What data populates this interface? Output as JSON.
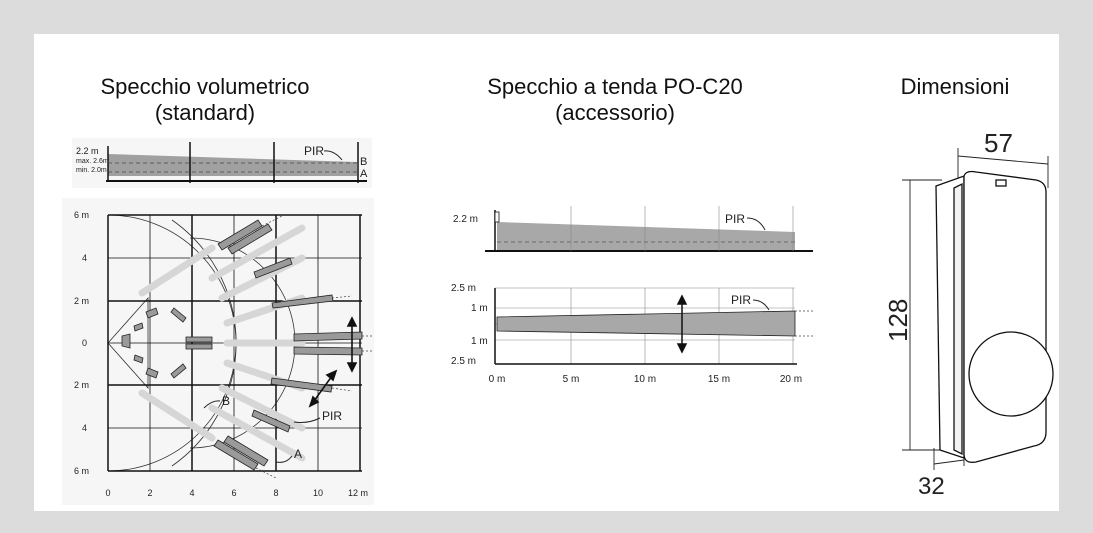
{
  "panels": {
    "volumetric": {
      "title_line1": "Specchio volumetrico",
      "title_line2": "(standard)",
      "side": {
        "height_label": "2.2 m",
        "max_label": "max. 2.6m",
        "min_label": "min. 2.0m",
        "pir_label": "PIR",
        "b_label": "B",
        "a_label": "A"
      },
      "top": {
        "y_labels": [
          "6 m",
          "4",
          "2 m",
          "0",
          "2 m",
          "4",
          "6 m"
        ],
        "x_labels": [
          "0",
          "2",
          "4",
          "6",
          "8",
          "10",
          "12 m"
        ],
        "pir_label": "PIR",
        "a_label": "A",
        "b_label": "B"
      }
    },
    "curtain": {
      "title_line1": "Specchio a tenda PO-C20",
      "title_line2": "(accessorio)",
      "side": {
        "height_label": "2.2 m",
        "pir_label": "PIR"
      },
      "top": {
        "y_labels": [
          "2.5 m",
          "1 m",
          "1 m",
          "2.5 m"
        ],
        "x_labels": [
          "0 m",
          "5 m",
          "10 m",
          "15 m",
          "20 m"
        ],
        "pir_label": "PIR"
      }
    },
    "dimensions": {
      "title": "Dimensioni",
      "width_label": "57",
      "height_label": "128",
      "depth_label": "32"
    }
  },
  "colors": {
    "background": "#dcdcdc",
    "panel": "#ffffff",
    "beam": "#9a9a9a",
    "beam_light": "#d9d9d9",
    "line": "#111111"
  }
}
